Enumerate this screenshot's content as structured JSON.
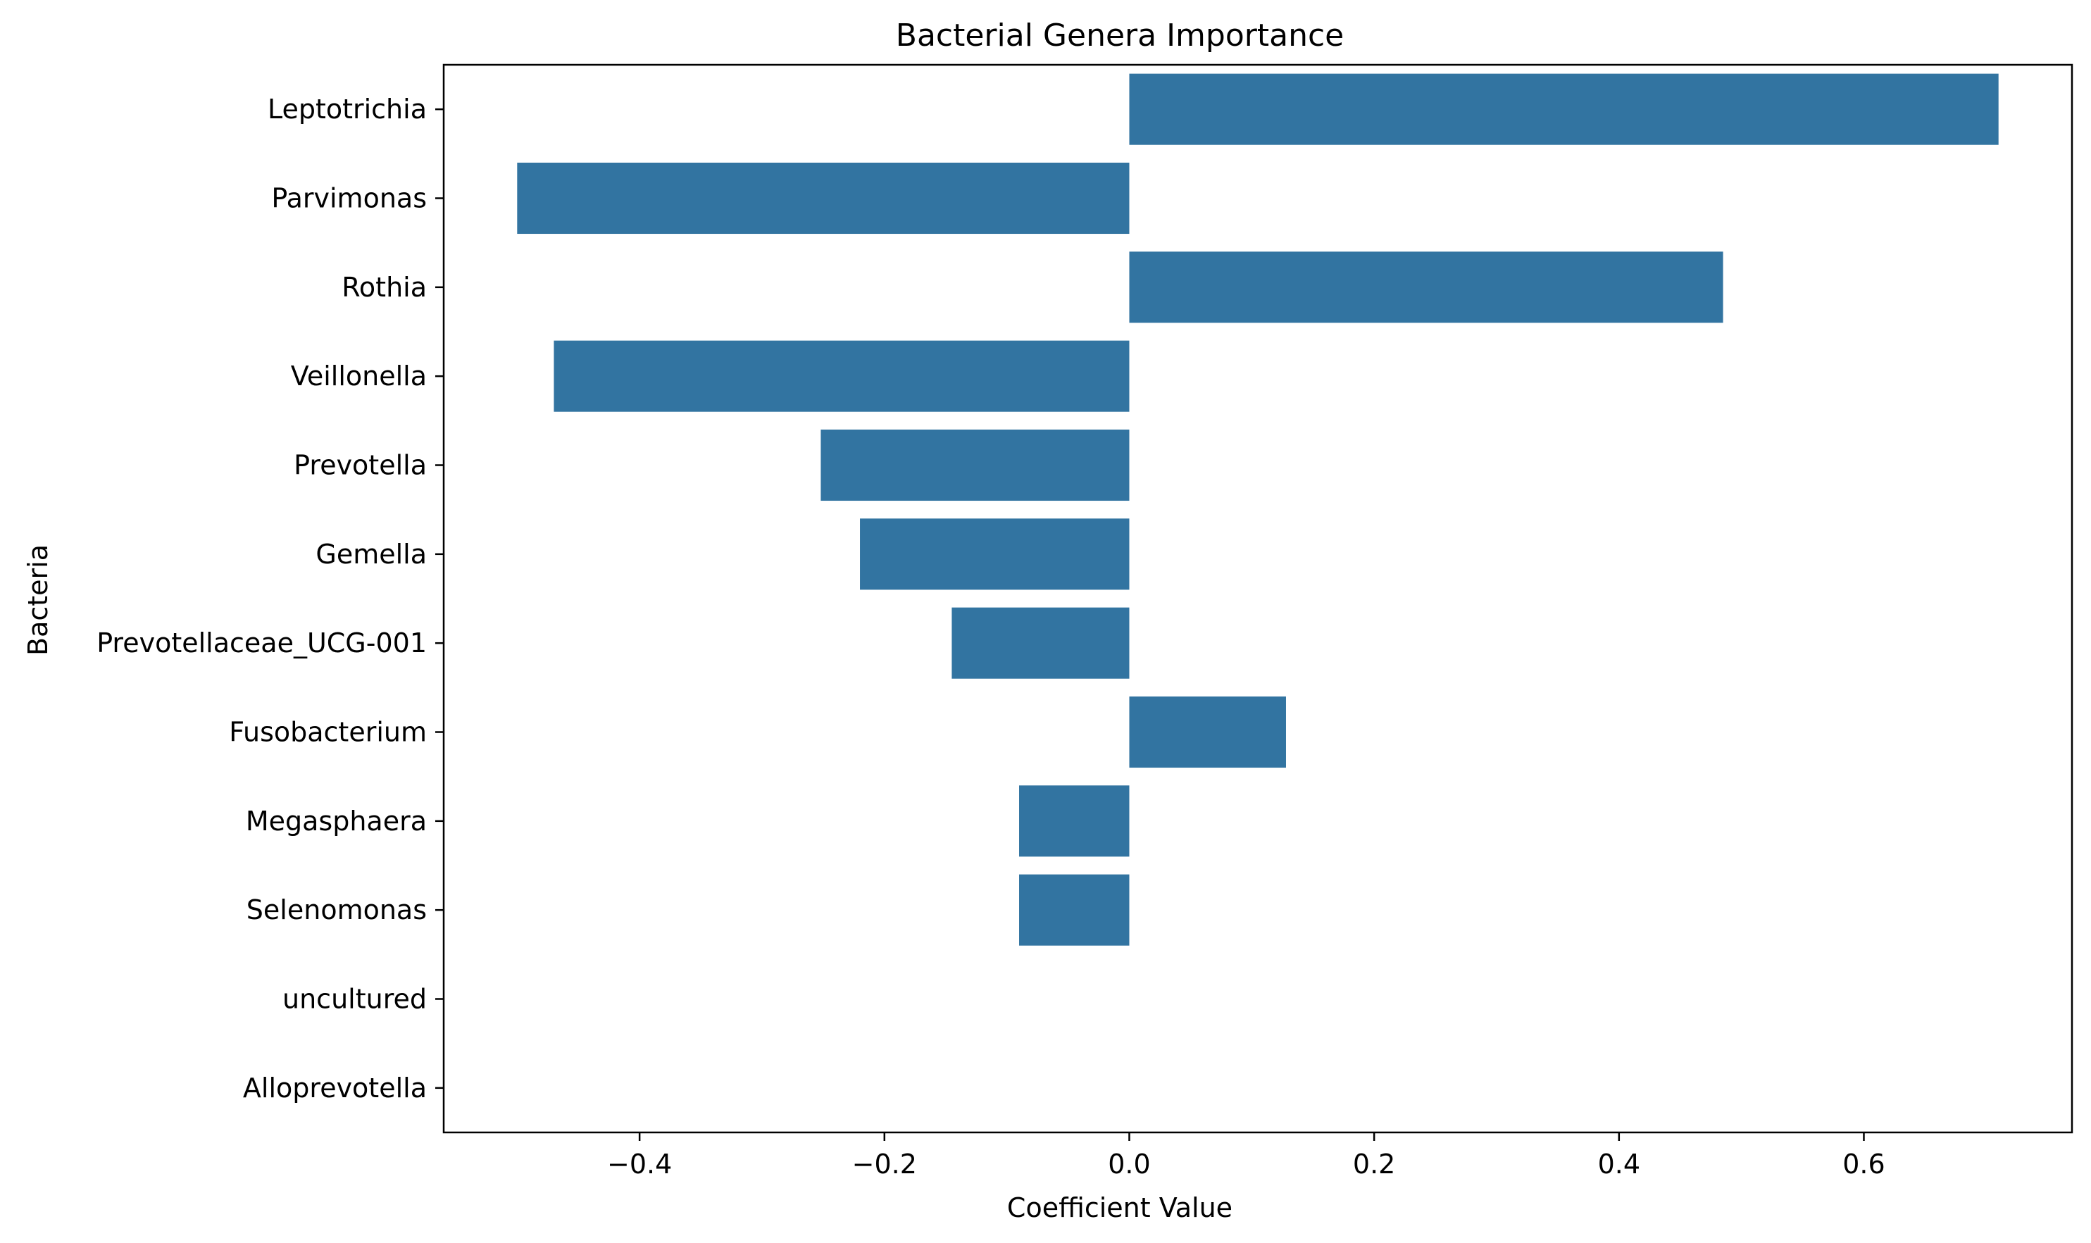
{
  "chart_data": {
    "type": "bar",
    "orientation": "horizontal",
    "title": "Bacterial Genera Importance",
    "xlabel": "Coefficient Value",
    "ylabel": "Bacteria",
    "categories": [
      "Leptotrichia",
      "Parvimonas",
      "Rothia",
      "Veillonella",
      "Prevotella",
      "Gemella",
      "Prevotellaceae_UCG-001",
      "Fusobacterium",
      "Megasphaera",
      "Selenomonas",
      "uncultured",
      "Alloprevotella"
    ],
    "values": [
      0.71,
      -0.5,
      0.485,
      -0.47,
      -0.252,
      -0.22,
      -0.145,
      0.128,
      -0.09,
      -0.09,
      0.0,
      0.0
    ],
    "xlim": [
      -0.56,
      0.77
    ],
    "xticks": [
      -0.4,
      -0.2,
      0.0,
      0.2,
      0.4,
      0.6
    ],
    "xtick_labels": [
      "−0.4",
      "−0.2",
      "0.0",
      "0.2",
      "0.4",
      "0.6"
    ],
    "grid": false,
    "bar_color": "#3274a1"
  }
}
